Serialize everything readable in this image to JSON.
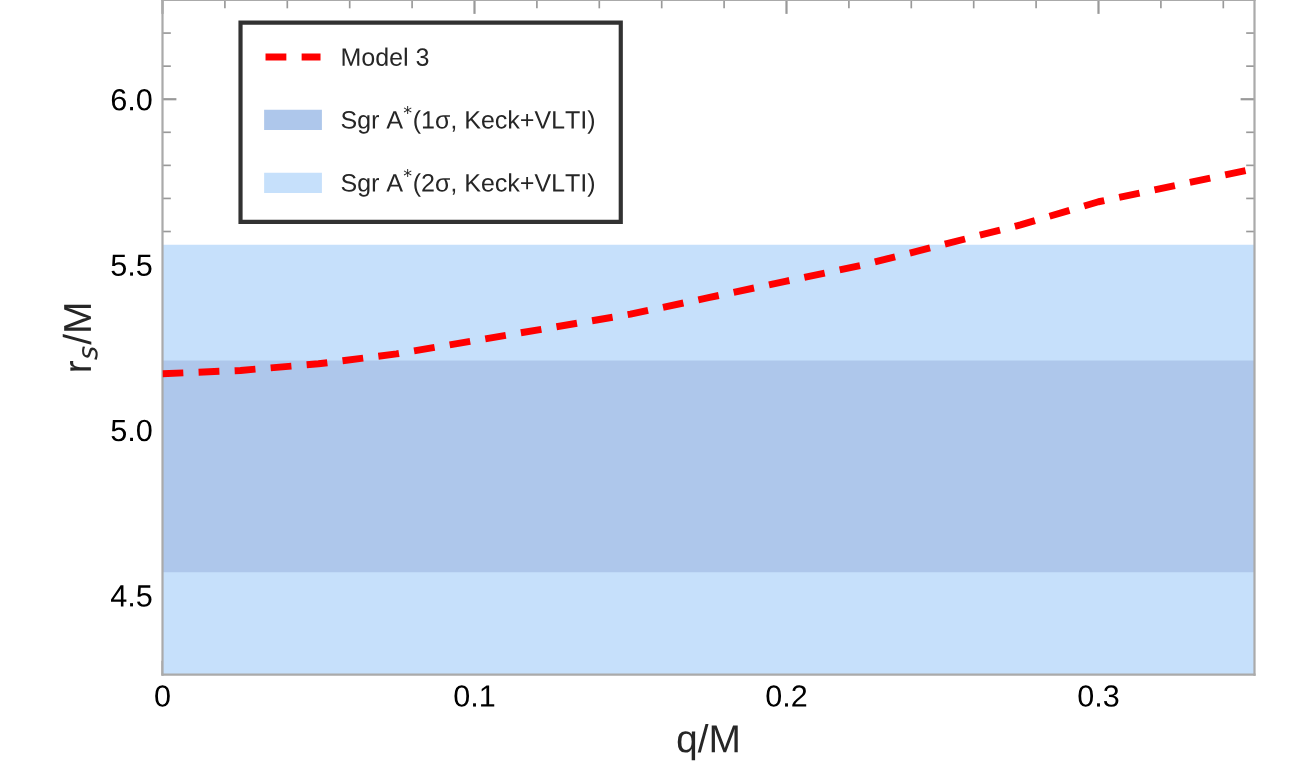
{
  "chart_data": {
    "type": "line",
    "xlabel": "q/M",
    "ylabel": "r$_{s}$/M",
    "x": [
      0,
      0.025,
      0.05,
      0.075,
      0.1,
      0.125,
      0.15,
      0.175,
      0.2,
      0.225,
      0.25,
      0.275,
      0.3,
      0.325,
      0.35
    ],
    "series": [
      {
        "name": "Model 3",
        "color": "#ff0000",
        "line_style": "dashed",
        "values": [
          5.17,
          5.18,
          5.2,
          5.23,
          5.27,
          5.31,
          5.35,
          5.4,
          5.45,
          5.5,
          5.56,
          5.62,
          5.69,
          5.74,
          5.79
        ]
      }
    ],
    "bands": [
      {
        "axis": "y",
        "from": 4.57,
        "to": 5.21,
        "label": "Sgr A$^{*}$(1σ, Keck+VLTI)",
        "color": "#aec7eb"
      },
      {
        "axis": "y",
        "from": 4.26,
        "to": 5.56,
        "label": "Sgr A$^{*}$(2σ, Keck+VLTI)",
        "color": "#c6e0fb"
      }
    ],
    "xlim": [
      0,
      0.35
    ],
    "xticks": [
      {
        "value": 0,
        "label": "0"
      },
      0.1,
      0.2,
      0.3
    ],
    "ylim": [
      4.26,
      6.3
    ],
    "yticks": [
      4.5,
      {
        "value": 5,
        "label": "5.0"
      },
      5.5,
      {
        "value": 6,
        "label": "6.0"
      }
    ],
    "grid": false,
    "legend": "top left"
  }
}
